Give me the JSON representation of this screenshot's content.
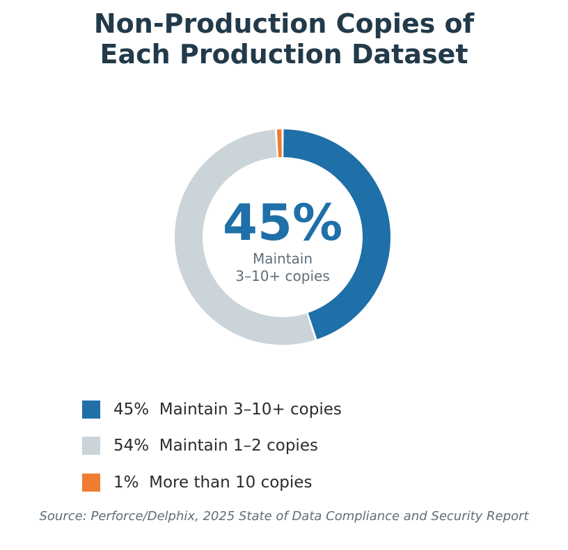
{
  "chart_data": {
    "type": "pie",
    "title": "Non-Production Copies of Each Production Dataset",
    "title_lines": [
      "Non-Production Copies of",
      "Each Production Dataset"
    ],
    "slices": [
      {
        "label": "Maintain 3–10+ copies",
        "value": 45,
        "display": "45%",
        "color": "#1f6fa8"
      },
      {
        "label": "Maintain 1–2 copies",
        "value": 54,
        "display": "54%",
        "color": "#cbd4d9"
      },
      {
        "label": "More than 10 copies",
        "value": 1,
        "display": "1%",
        "color": "#ee7d31"
      }
    ],
    "center": {
      "value": "45%",
      "label_lines": [
        "Maintain",
        "3–10+ copies"
      ]
    },
    "legend": {
      "placement": "bottom",
      "entries": [
        "45%  Maintain 3–10+ copies",
        "54%  Maintain 1–2 copies",
        "1%  More than 10 copies"
      ]
    },
    "source": "Source: Perforce/Delphix, 2025 State of Data Compliance and Security Report"
  }
}
